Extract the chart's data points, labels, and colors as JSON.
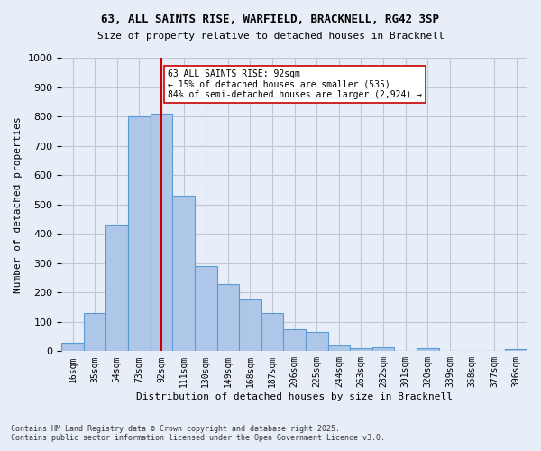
{
  "title_line1": "63, ALL SAINTS RISE, WARFIELD, BRACKNELL, RG42 3SP",
  "title_line2": "Size of property relative to detached houses in Bracknell",
  "xlabel": "Distribution of detached houses by size in Bracknell",
  "ylabel": "Number of detached properties",
  "bin_labels": [
    "16sqm",
    "35sqm",
    "54sqm",
    "73sqm",
    "92sqm",
    "111sqm",
    "130sqm",
    "149sqm",
    "168sqm",
    "187sqm",
    "206sqm",
    "225sqm",
    "244sqm",
    "263sqm",
    "282sqm",
    "301sqm",
    "320sqm",
    "339sqm",
    "358sqm",
    "377sqm",
    "396sqm"
  ],
  "bar_heights": [
    30,
    130,
    430,
    800,
    810,
    530,
    290,
    230,
    175,
    130,
    75,
    65,
    20,
    10,
    12,
    0,
    10,
    0,
    0,
    0,
    8
  ],
  "bar_color": "#aec6e8",
  "bar_edge_color": "#5b9bd5",
  "property_line_x": 4,
  "property_line_label": "92sqm",
  "annotation_title": "63 ALL SAINTS RISE: 92sqm",
  "annotation_line2": "← 15% of detached houses are smaller (535)",
  "annotation_line3": "84% of semi-detached houses are larger (2,924) →",
  "annotation_box_color": "#ffffff",
  "annotation_box_edge": "#cc0000",
  "red_line_color": "#cc0000",
  "ylim": [
    0,
    1000
  ],
  "yticks": [
    0,
    100,
    200,
    300,
    400,
    500,
    600,
    700,
    800,
    900,
    1000
  ],
  "grid_color": "#c0c8d8",
  "bg_color": "#e8eef8",
  "footer_line1": "Contains HM Land Registry data © Crown copyright and database right 2025.",
  "footer_line2": "Contains public sector information licensed under the Open Government Licence v3.0."
}
